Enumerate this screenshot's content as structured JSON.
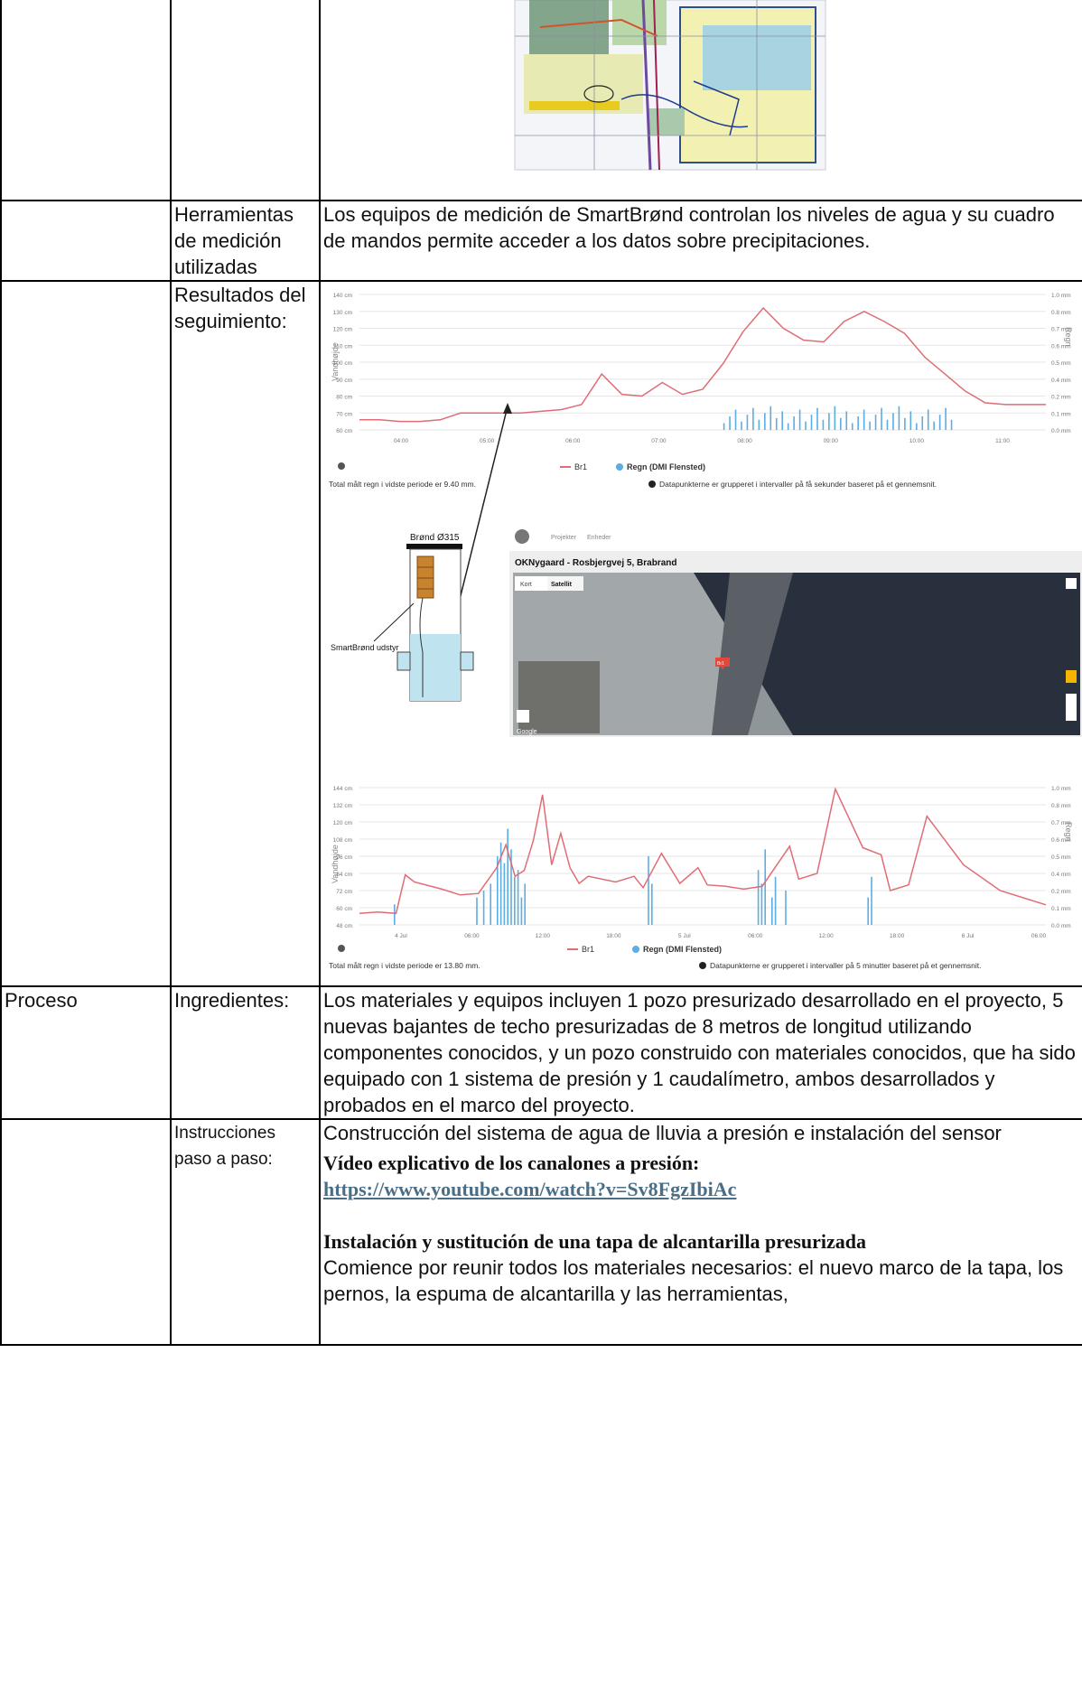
{
  "rows": {
    "measurement_tools": {
      "label": "Herramientas de medición utilizadas",
      "text": "Los equipos de medición de SmartBrønd controlan los niveles de agua y su cuadro de mandos permite acceder a los datos sobre precipitaciones."
    },
    "results": {
      "label": "Resultados del seguimiento:"
    },
    "process": {
      "section_label": "Proceso",
      "ingredients_label": "Ingredientes:",
      "ingredients_text": "Los materiales y equipos incluyen 1 pozo presurizado desarrollado en el proyecto, 5 nuevas bajantes de techo presurizadas de 8 metros de longitud utilizando componentes conocidos, y un pozo construido con materiales conocidos, que ha sido equipado con 1 sistema de presión y 1 caudalímetro, ambos desarrollados y probados en el marco del proyecto.",
      "steps_label": "Instrucciones paso a paso:",
      "steps_intro": "Construcción del sistema de agua de lluvia a presión e instalación del sensor",
      "video_title": "Vídeo explicativo de los canalones a presión:",
      "video_link": "https://www.youtube.com/watch?v=Sv8FgzIbiAc",
      "install_title": "Instalación y sustitución de una tapa de alcantarilla presurizada",
      "install_text": "Comience por reunir todos los materiales necesarios: el nuevo marco de la tapa, los pernos, la espuma de alcantarilla y las herramientas,"
    }
  },
  "figure": {
    "chart1": {
      "legend": [
        "Br1",
        "Regn (DMI Flensted)"
      ],
      "footer_left": "Total målt regn i vidste periode er 9.40 mm.",
      "footer_right": "Datapunkterne er grupperet i intervaller på få sekunder baseret på et gennemsnit.",
      "ylabel": "Vandhøjde",
      "y2label": "Regn"
    },
    "well": {
      "title": "Brønd Ø315",
      "equipment": "SmartBrønd udstyr"
    },
    "map": {
      "nav_items": [
        "Projekter",
        "Enheder"
      ],
      "title": "OKNygaard - Rosbjergvej 5, Brabrand",
      "tabs": [
        "Kort",
        "Satellit"
      ],
      "marker": "Br1",
      "brand": "Google"
    },
    "chart2": {
      "legend": [
        "Br1",
        "Regn (DMI Flensted)"
      ],
      "footer_left": "Total målt regn i vidste periode er 13.80 mm.",
      "footer_right": "Datapunkterne er grupperet i intervaller på 5 minutter baseret på et gennemsnit.",
      "ylabel": "Vandhøjde",
      "y2label": "Regn"
    }
  },
  "chart_data": [
    {
      "type": "line",
      "series": [
        {
          "name": "Br1",
          "color": "#e06c75",
          "x": [
            0,
            1,
            2,
            3,
            4,
            5,
            6,
            7,
            8,
            9,
            10,
            11,
            12,
            13,
            14,
            15,
            16,
            17,
            18,
            19,
            20,
            21,
            22,
            23,
            24,
            25,
            26,
            27,
            28,
            29,
            30,
            31,
            32,
            33,
            34
          ],
          "values": [
            66,
            66,
            65,
            65,
            66,
            70,
            70,
            70,
            70,
            71,
            72,
            75,
            93,
            81,
            80,
            88,
            81,
            84,
            99,
            118,
            132,
            120,
            113,
            112,
            124,
            130,
            124,
            117,
            103,
            93,
            83,
            76,
            75,
            75,
            75
          ]
        },
        {
          "name": "Regn (DMI Flensted)",
          "color": "#5dade2"
        }
      ],
      "yticks": [
        "140 cm",
        "130 cm",
        "120 cm",
        "110 cm",
        "100 cm",
        "90 cm",
        "80 cm",
        "70 cm",
        "60 cm"
      ],
      "y2ticks": [
        "1.0 mm",
        "0.8 mm",
        "0.7 mm",
        "0.6 mm",
        "0.5 mm",
        "0.4 mm",
        "0.2 mm",
        "0.1 mm",
        "0.0 mm"
      ],
      "xticks": [
        "04:00",
        "05:00",
        "06:00",
        "07:00",
        "08:00",
        "09:00",
        "10:00",
        "11:00"
      ],
      "ylim": [
        60,
        140
      ]
    },
    {
      "type": "line",
      "series": [
        {
          "name": "Br1",
          "color": "#e06c75",
          "x": [
            0,
            2,
            4,
            5,
            6,
            9,
            11,
            13,
            15,
            16,
            17,
            18,
            19,
            20,
            21,
            22,
            23,
            24,
            25,
            28,
            30,
            31,
            33,
            35,
            37,
            38,
            40,
            42,
            44,
            47,
            48,
            50,
            52,
            55,
            57,
            58,
            60,
            62,
            66,
            70,
            75
          ],
          "values": [
            56,
            57,
            56,
            83,
            78,
            73,
            69,
            70,
            88,
            104,
            82,
            86,
            107,
            139,
            90,
            112,
            88,
            77,
            82,
            78,
            82,
            74,
            98,
            77,
            88,
            76,
            75,
            73,
            75,
            103,
            80,
            84,
            143,
            102,
            97,
            72,
            76,
            124,
            90,
            72,
            62
          ]
        },
        {
          "name": "Regn (DMI Flensted)",
          "color": "#5dade2"
        }
      ],
      "yticks": [
        "144 cm",
        "132 cm",
        "120 cm",
        "108 cm",
        "96 cm",
        "84 cm",
        "72 cm",
        "60 cm",
        "48 cm"
      ],
      "y2ticks": [
        "1.0 mm",
        "0.8 mm",
        "0.7 mm",
        "0.6 mm",
        "0.5 mm",
        "0.4 mm",
        "0.2 mm",
        "0.1 mm",
        "0.0 mm"
      ],
      "xticks": [
        "4 Jul",
        "06:00",
        "12:00",
        "18:00",
        "5 Jul",
        "06:00",
        "12:00",
        "18:00",
        "6 Jul",
        "06:00"
      ],
      "ylim": [
        48,
        144
      ]
    }
  ]
}
